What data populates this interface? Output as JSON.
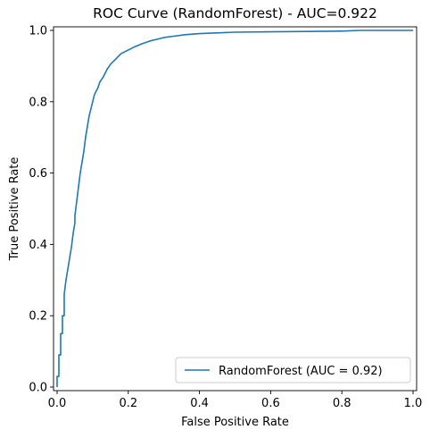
{
  "chart_data": {
    "type": "line",
    "title": "ROC Curve (RandomForest) - AUC=0.922",
    "xlabel": "False Positive Rate",
    "ylabel": "True Positive Rate",
    "xlim": [
      -0.01,
      1.01
    ],
    "ylim": [
      -0.01,
      1.01
    ],
    "xticks": [
      0.0,
      0.2,
      0.4,
      0.6,
      0.8,
      1.0
    ],
    "yticks": [
      0.0,
      0.2,
      0.4,
      0.6,
      0.8,
      1.0
    ],
    "xtick_labels": [
      "0.0",
      "0.2",
      "0.4",
      "0.6",
      "0.8",
      "1.0"
    ],
    "ytick_labels": [
      "0.0",
      "0.2",
      "0.4",
      "0.6",
      "0.8",
      "1.0"
    ],
    "grid": false,
    "legend": {
      "position": "lower-right",
      "entries": [
        "RandomForest (AUC = 0.92)"
      ]
    },
    "series": [
      {
        "name": "RandomForest (AUC = 0.92)",
        "color": "#1f77b4",
        "x": [
          0.0,
          0.0,
          0.005,
          0.005,
          0.01,
          0.01,
          0.015,
          0.015,
          0.02,
          0.02,
          0.025,
          0.03,
          0.035,
          0.04,
          0.045,
          0.05,
          0.05,
          0.055,
          0.06,
          0.065,
          0.07,
          0.075,
          0.08,
          0.085,
          0.09,
          0.095,
          0.1,
          0.105,
          0.11,
          0.115,
          0.12,
          0.13,
          0.14,
          0.15,
          0.16,
          0.17,
          0.18,
          0.19,
          0.2,
          0.21,
          0.22,
          0.24,
          0.26,
          0.28,
          0.3,
          0.33,
          0.36,
          0.4,
          0.45,
          0.5,
          0.6,
          0.7,
          0.8,
          0.85,
          0.9,
          0.95,
          1.0
        ],
        "y": [
          0.0,
          0.03,
          0.03,
          0.09,
          0.09,
          0.15,
          0.15,
          0.2,
          0.2,
          0.26,
          0.3,
          0.33,
          0.36,
          0.39,
          0.43,
          0.46,
          0.48,
          0.52,
          0.56,
          0.6,
          0.63,
          0.66,
          0.7,
          0.73,
          0.76,
          0.78,
          0.8,
          0.82,
          0.83,
          0.84,
          0.855,
          0.87,
          0.89,
          0.905,
          0.915,
          0.925,
          0.935,
          0.94,
          0.945,
          0.95,
          0.955,
          0.963,
          0.97,
          0.975,
          0.98,
          0.984,
          0.988,
          0.991,
          0.993,
          0.995,
          0.996,
          0.997,
          0.998,
          1.0,
          1.0,
          1.0,
          1.0
        ]
      }
    ]
  }
}
